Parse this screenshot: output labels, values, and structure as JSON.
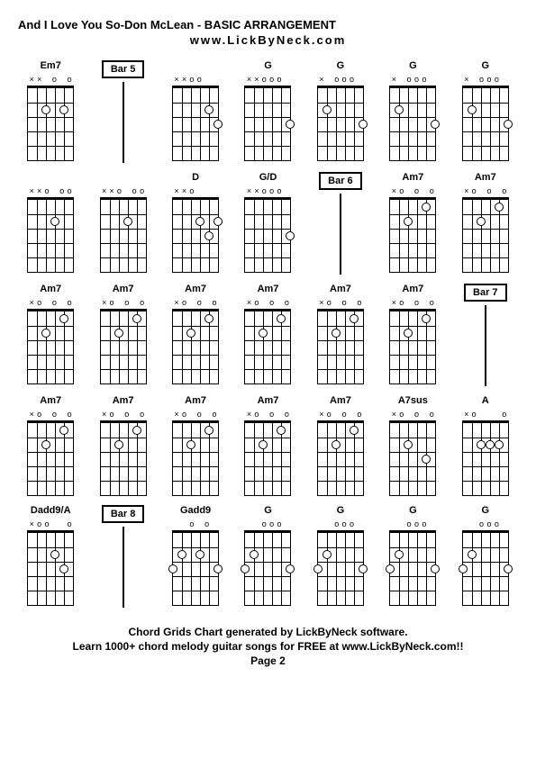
{
  "title": "And I Love You So-Don McLean - BASIC ARRANGEMENT",
  "website": "www.LickByNeck.com",
  "footer": {
    "line1": "Chord Grids Chart generated by LickByNeck software.",
    "line2": "Learn 1000+ chord melody guitar songs for FREE at www.LickByNeck.com!!",
    "page": "Page 2"
  },
  "frets": 5,
  "strings": 6,
  "cells": [
    {
      "type": "chord",
      "label": "Em7",
      "markers": [
        "x",
        "x",
        "",
        "o",
        "",
        "o"
      ],
      "dots": [
        {
          "s": 2,
          "f": 2
        },
        {
          "s": 4,
          "f": 2
        }
      ]
    },
    {
      "type": "bar",
      "label": "Bar 5"
    },
    {
      "type": "chord",
      "label": "",
      "markers": [
        "x",
        "x",
        "o",
        "o",
        "",
        ""
      ],
      "dots": [
        {
          "s": 4,
          "f": 2
        },
        {
          "s": 5,
          "f": 3
        }
      ]
    },
    {
      "type": "chord",
      "label": "G",
      "markers": [
        "x",
        "x",
        "o",
        "o",
        "o",
        ""
      ],
      "dots": [
        {
          "s": 5,
          "f": 3
        }
      ]
    },
    {
      "type": "chord",
      "label": "G",
      "markers": [
        "x",
        "",
        "o",
        "o",
        "o",
        ""
      ],
      "dots": [
        {
          "s": 1,
          "f": 2
        },
        {
          "s": 5,
          "f": 3
        }
      ]
    },
    {
      "type": "chord",
      "label": "G",
      "markers": [
        "x",
        "",
        "o",
        "o",
        "o",
        ""
      ],
      "dots": [
        {
          "s": 1,
          "f": 2
        },
        {
          "s": 5,
          "f": 3
        }
      ]
    },
    {
      "type": "chord",
      "label": "G",
      "markers": [
        "x",
        "",
        "o",
        "o",
        "o",
        ""
      ],
      "dots": [
        {
          "s": 1,
          "f": 2
        },
        {
          "s": 5,
          "f": 3
        }
      ]
    },
    {
      "type": "chord",
      "label": "",
      "markers": [
        "x",
        "x",
        "o",
        "",
        "o",
        "o"
      ],
      "dots": [
        {
          "s": 3,
          "f": 2
        }
      ]
    },
    {
      "type": "chord",
      "label": "",
      "markers": [
        "x",
        "x",
        "o",
        "",
        "o",
        "o"
      ],
      "dots": [
        {
          "s": 3,
          "f": 2
        }
      ]
    },
    {
      "type": "chord",
      "label": "D",
      "markers": [
        "x",
        "x",
        "o",
        "",
        "",
        ""
      ],
      "dots": [
        {
          "s": 3,
          "f": 2
        },
        {
          "s": 4,
          "f": 3
        },
        {
          "s": 5,
          "f": 2
        }
      ]
    },
    {
      "type": "chord",
      "label": "G/D",
      "markers": [
        "x",
        "x",
        "o",
        "o",
        "o",
        ""
      ],
      "dots": [
        {
          "s": 5,
          "f": 3
        }
      ]
    },
    {
      "type": "bar",
      "label": "Bar 6"
    },
    {
      "type": "chord",
      "label": "Am7",
      "markers": [
        "x",
        "o",
        "",
        "o",
        "",
        "o"
      ],
      "dots": [
        {
          "s": 2,
          "f": 2
        },
        {
          "s": 4,
          "f": 1
        }
      ]
    },
    {
      "type": "chord",
      "label": "Am7",
      "markers": [
        "x",
        "o",
        "",
        "o",
        "",
        "o"
      ],
      "dots": [
        {
          "s": 2,
          "f": 2
        },
        {
          "s": 4,
          "f": 1
        }
      ]
    },
    {
      "type": "chord",
      "label": "Am7",
      "markers": [
        "x",
        "o",
        "",
        "o",
        "",
        "o"
      ],
      "dots": [
        {
          "s": 2,
          "f": 2
        },
        {
          "s": 4,
          "f": 1
        }
      ]
    },
    {
      "type": "chord",
      "label": "Am7",
      "markers": [
        "x",
        "o",
        "",
        "o",
        "",
        "o"
      ],
      "dots": [
        {
          "s": 2,
          "f": 2
        },
        {
          "s": 4,
          "f": 1
        }
      ]
    },
    {
      "type": "chord",
      "label": "Am7",
      "markers": [
        "x",
        "o",
        "",
        "o",
        "",
        "o"
      ],
      "dots": [
        {
          "s": 2,
          "f": 2
        },
        {
          "s": 4,
          "f": 1
        }
      ]
    },
    {
      "type": "chord",
      "label": "Am7",
      "markers": [
        "x",
        "o",
        "",
        "o",
        "",
        "o"
      ],
      "dots": [
        {
          "s": 2,
          "f": 2
        },
        {
          "s": 4,
          "f": 1
        }
      ]
    },
    {
      "type": "chord",
      "label": "Am7",
      "markers": [
        "x",
        "o",
        "",
        "o",
        "",
        "o"
      ],
      "dots": [
        {
          "s": 2,
          "f": 2
        },
        {
          "s": 4,
          "f": 1
        }
      ]
    },
    {
      "type": "chord",
      "label": "Am7",
      "markers": [
        "x",
        "o",
        "",
        "o",
        "",
        "o"
      ],
      "dots": [
        {
          "s": 2,
          "f": 2
        },
        {
          "s": 4,
          "f": 1
        }
      ]
    },
    {
      "type": "bar",
      "label": "Bar 7"
    },
    {
      "type": "chord",
      "label": "Am7",
      "markers": [
        "x",
        "o",
        "",
        "o",
        "",
        "o"
      ],
      "dots": [
        {
          "s": 2,
          "f": 2
        },
        {
          "s": 4,
          "f": 1
        }
      ]
    },
    {
      "type": "chord",
      "label": "Am7",
      "markers": [
        "x",
        "o",
        "",
        "o",
        "",
        "o"
      ],
      "dots": [
        {
          "s": 2,
          "f": 2
        },
        {
          "s": 4,
          "f": 1
        }
      ]
    },
    {
      "type": "chord",
      "label": "Am7",
      "markers": [
        "x",
        "o",
        "",
        "o",
        "",
        "o"
      ],
      "dots": [
        {
          "s": 2,
          "f": 2
        },
        {
          "s": 4,
          "f": 1
        }
      ]
    },
    {
      "type": "chord",
      "label": "Am7",
      "markers": [
        "x",
        "o",
        "",
        "o",
        "",
        "o"
      ],
      "dots": [
        {
          "s": 2,
          "f": 2
        },
        {
          "s": 4,
          "f": 1
        }
      ]
    },
    {
      "type": "chord",
      "label": "Am7",
      "markers": [
        "x",
        "o",
        "",
        "o",
        "",
        "o"
      ],
      "dots": [
        {
          "s": 2,
          "f": 2
        },
        {
          "s": 4,
          "f": 1
        }
      ]
    },
    {
      "type": "chord",
      "label": "A7sus",
      "markers": [
        "x",
        "o",
        "",
        "o",
        "",
        "o"
      ],
      "dots": [
        {
          "s": 2,
          "f": 2
        },
        {
          "s": 4,
          "f": 3
        }
      ]
    },
    {
      "type": "chord",
      "label": "A",
      "markers": [
        "x",
        "o",
        "",
        "",
        "",
        "o"
      ],
      "dots": [
        {
          "s": 2,
          "f": 2
        },
        {
          "s": 3,
          "f": 2
        },
        {
          "s": 4,
          "f": 2
        }
      ]
    },
    {
      "type": "chord",
      "label": "Dadd9/A",
      "markers": [
        "x",
        "o",
        "o",
        "",
        "",
        "o"
      ],
      "dots": [
        {
          "s": 3,
          "f": 2
        },
        {
          "s": 4,
          "f": 3
        }
      ]
    },
    {
      "type": "bar",
      "label": "Bar 8"
    },
    {
      "type": "chord",
      "label": "Gadd9",
      "markers": [
        "",
        "",
        "o",
        "",
        "o",
        ""
      ],
      "dots": [
        {
          "s": 0,
          "f": 3
        },
        {
          "s": 1,
          "f": 2
        },
        {
          "s": 3,
          "f": 2
        },
        {
          "s": 5,
          "f": 3
        }
      ]
    },
    {
      "type": "chord",
      "label": "G",
      "markers": [
        "",
        "",
        "o",
        "o",
        "o",
        ""
      ],
      "dots": [
        {
          "s": 0,
          "f": 3
        },
        {
          "s": 1,
          "f": 2
        },
        {
          "s": 5,
          "f": 3
        }
      ]
    },
    {
      "type": "chord",
      "label": "G",
      "markers": [
        "",
        "",
        "o",
        "o",
        "o",
        ""
      ],
      "dots": [
        {
          "s": 0,
          "f": 3
        },
        {
          "s": 1,
          "f": 2
        },
        {
          "s": 5,
          "f": 3
        }
      ]
    },
    {
      "type": "chord",
      "label": "G",
      "markers": [
        "",
        "",
        "o",
        "o",
        "o",
        ""
      ],
      "dots": [
        {
          "s": 0,
          "f": 3
        },
        {
          "s": 1,
          "f": 2
        },
        {
          "s": 5,
          "f": 3
        }
      ]
    },
    {
      "type": "chord",
      "label": "G",
      "markers": [
        "",
        "",
        "o",
        "o",
        "o",
        ""
      ],
      "dots": [
        {
          "s": 0,
          "f": 3
        },
        {
          "s": 1,
          "f": 2
        },
        {
          "s": 5,
          "f": 3
        }
      ]
    }
  ]
}
